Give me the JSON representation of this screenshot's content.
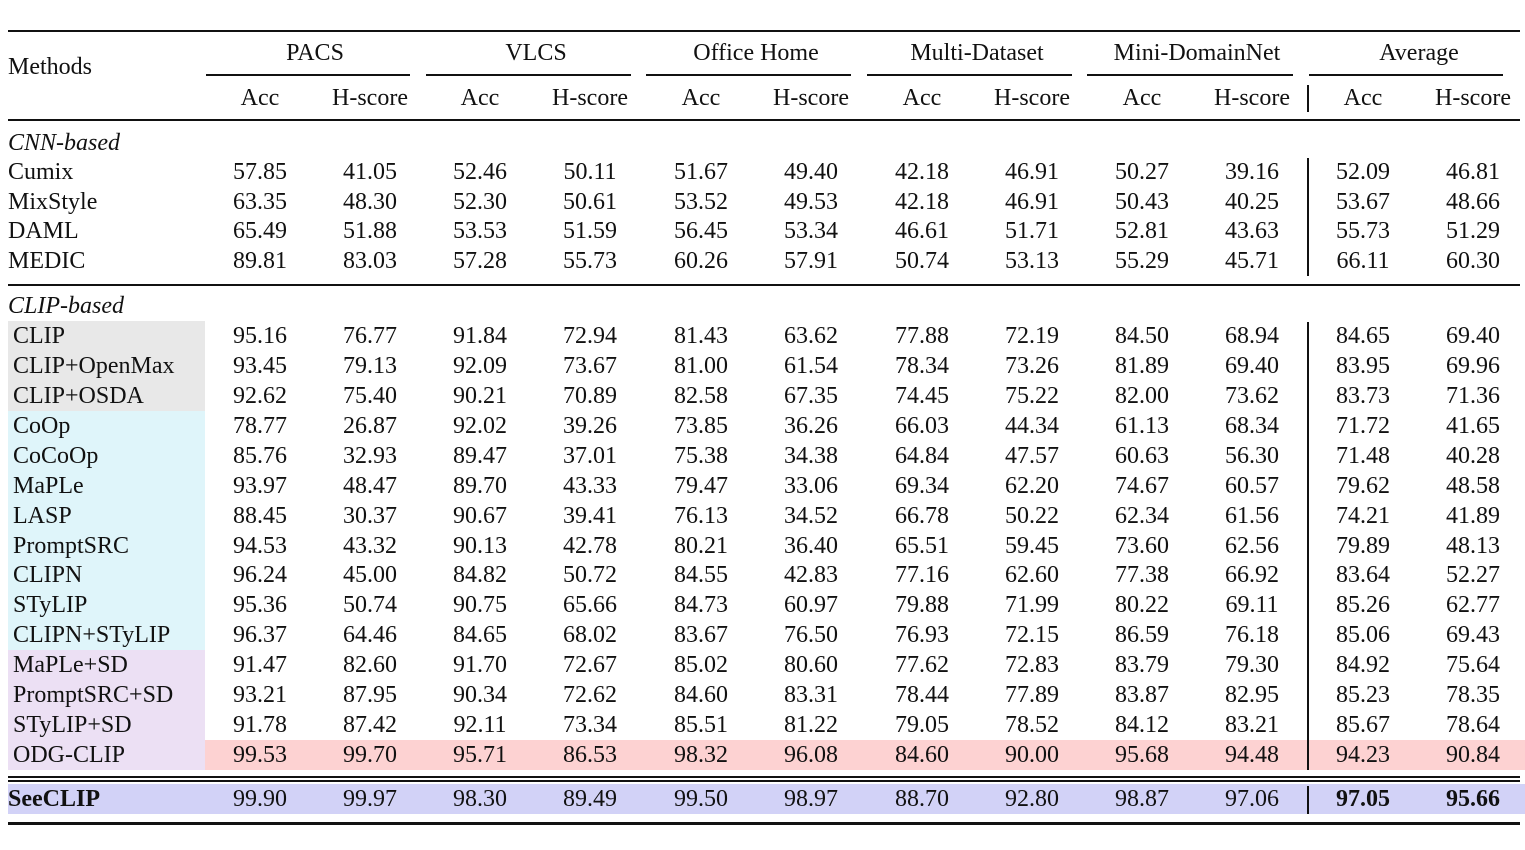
{
  "table": {
    "methods_header": "Methods",
    "groups": [
      "PACS",
      "VLCS",
      "Office Home",
      "Multi-Dataset",
      "Mini-DomainNet",
      "Average"
    ],
    "subheaders": [
      "Acc",
      "H-score",
      "Acc",
      "H-score",
      "Acc",
      "H-score",
      "Acc",
      "H-score",
      "Acc",
      "H-score",
      "Acc",
      "H-score"
    ],
    "sections": [
      {
        "title": "CNN-based",
        "rows": [
          {
            "method": "Cumix",
            "values": [
              "57.85",
              "41.05",
              "52.46",
              "50.11",
              "51.67",
              "49.40",
              "42.18",
              "46.91",
              "50.27",
              "39.16",
              "52.09",
              "46.81"
            ]
          },
          {
            "method": "MixStyle",
            "values": [
              "63.35",
              "48.30",
              "52.30",
              "50.61",
              "53.52",
              "49.53",
              "42.18",
              "46.91",
              "50.43",
              "40.25",
              "53.67",
              "48.66"
            ]
          },
          {
            "method": "DAML",
            "values": [
              "65.49",
              "51.88",
              "53.53",
              "51.59",
              "56.45",
              "53.34",
              "46.61",
              "51.71",
              "52.81",
              "43.63",
              "55.73",
              "51.29"
            ]
          },
          {
            "method": "MEDIC",
            "values": [
              "89.81",
              "83.03",
              "57.28",
              "55.73",
              "60.26",
              "57.91",
              "50.74",
              "53.13",
              "55.29",
              "45.71",
              "66.11",
              "60.30"
            ]
          }
        ]
      },
      {
        "title": "CLIP-based",
        "rows": [
          {
            "method": "CLIP",
            "values": [
              "95.16",
              "76.77",
              "91.84",
              "72.94",
              "81.43",
              "63.62",
              "77.88",
              "72.19",
              "84.50",
              "68.94",
              "84.65",
              "69.40"
            ]
          },
          {
            "method": "CLIP+OpenMax",
            "values": [
              "93.45",
              "79.13",
              "92.09",
              "73.67",
              "81.00",
              "61.54",
              "78.34",
              "73.26",
              "81.89",
              "69.40",
              "83.95",
              "69.96"
            ]
          },
          {
            "method": "CLIP+OSDA",
            "values": [
              "92.62",
              "75.40",
              "90.21",
              "70.89",
              "82.58",
              "67.35",
              "74.45",
              "75.22",
              "82.00",
              "73.62",
              "83.73",
              "71.36"
            ]
          },
          {
            "method": "CoOp",
            "values": [
              "78.77",
              "26.87",
              "92.02",
              "39.26",
              "73.85",
              "36.26",
              "66.03",
              "44.34",
              "61.13",
              "68.34",
              "71.72",
              "41.65"
            ]
          },
          {
            "method": "CoCoOp",
            "values": [
              "85.76",
              "32.93",
              "89.47",
              "37.01",
              "75.38",
              "34.38",
              "64.84",
              "47.57",
              "60.63",
              "56.30",
              "71.48",
              "40.28"
            ]
          },
          {
            "method": "MaPLe",
            "values": [
              "93.97",
              "48.47",
              "89.70",
              "43.33",
              "79.47",
              "33.06",
              "69.34",
              "62.20",
              "74.67",
              "60.57",
              "79.62",
              "48.58"
            ]
          },
          {
            "method": "LASP",
            "values": [
              "88.45",
              "30.37",
              "90.67",
              "39.41",
              "76.13",
              "34.52",
              "66.78",
              "50.22",
              "62.34",
              "61.56",
              "74.21",
              "41.89"
            ]
          },
          {
            "method": "PromptSRC",
            "values": [
              "94.53",
              "43.32",
              "90.13",
              "42.78",
              "80.21",
              "36.40",
              "65.51",
              "59.45",
              "73.60",
              "62.56",
              "79.89",
              "48.13"
            ]
          },
          {
            "method": "CLIPN",
            "values": [
              "96.24",
              "45.00",
              "84.82",
              "50.72",
              "84.55",
              "42.83",
              "77.16",
              "62.60",
              "77.38",
              "66.92",
              "83.64",
              "52.27"
            ]
          },
          {
            "method": "STyLIP",
            "values": [
              "95.36",
              "50.74",
              "90.75",
              "65.66",
              "84.73",
              "60.97",
              "79.88",
              "71.99",
              "80.22",
              "69.11",
              "85.26",
              "62.77"
            ]
          },
          {
            "method": "CLIPN+STyLIP",
            "values": [
              "96.37",
              "64.46",
              "84.65",
              "68.02",
              "83.67",
              "76.50",
              "76.93",
              "72.15",
              "86.59",
              "76.18",
              "85.06",
              "69.43"
            ]
          },
          {
            "method": "MaPLe+SD",
            "values": [
              "91.47",
              "82.60",
              "91.70",
              "72.67",
              "85.02",
              "80.60",
              "77.62",
              "72.83",
              "83.79",
              "79.30",
              "84.92",
              "75.64"
            ]
          },
          {
            "method": "PromptSRC+SD",
            "values": [
              "93.21",
              "87.95",
              "90.34",
              "72.62",
              "84.60",
              "83.31",
              "78.44",
              "77.89",
              "83.87",
              "82.95",
              "85.23",
              "78.35"
            ]
          },
          {
            "method": "STyLIP+SD",
            "values": [
              "91.78",
              "87.42",
              "92.11",
              "73.34",
              "85.51",
              "81.22",
              "79.05",
              "78.52",
              "84.12",
              "83.21",
              "85.67",
              "78.64"
            ]
          },
          {
            "method": "ODG-CLIP",
            "values": [
              "99.53",
              "99.70",
              "95.71",
              "86.53",
              "98.32",
              "96.08",
              "84.60",
              "90.00",
              "95.68",
              "94.48",
              "94.23",
              "90.84"
            ]
          }
        ]
      }
    ],
    "final": {
      "method": "SeeCLIP",
      "values": [
        "99.90",
        "99.97",
        "98.30",
        "89.49",
        "99.50",
        "98.97",
        "88.70",
        "92.80",
        "98.87",
        "97.06",
        "97.05",
        "95.66"
      ]
    }
  }
}
